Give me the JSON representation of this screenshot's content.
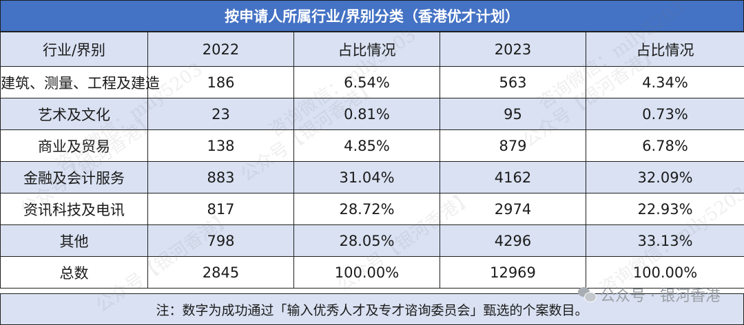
{
  "title": "按申请人所属行业/界别分类（香港优才计划）",
  "table": {
    "headers": [
      "行业/界别",
      "2022",
      "占比情况",
      "2023",
      "占比情况"
    ],
    "rows": [
      {
        "industry": "建筑、测量、工程及建造",
        "n2022": "186",
        "p2022": "6.54%",
        "n2023": "563",
        "p2023": "4.34%"
      },
      {
        "industry": "艺术及文化",
        "n2022": "23",
        "p2022": "0.81%",
        "n2023": "95",
        "p2023": "0.73%"
      },
      {
        "industry": "商业及贸易",
        "n2022": "138",
        "p2022": "4.85%",
        "n2023": "879",
        "p2023": "6.78%"
      },
      {
        "industry": "金融及会计服务",
        "n2022": "883",
        "p2022": "31.04%",
        "n2023": "4162",
        "p2023": "32.09%"
      },
      {
        "industry": "资讯科技及电讯",
        "n2022": "817",
        "p2022": "28.72%",
        "n2023": "2974",
        "p2023": "22.93%"
      },
      {
        "industry": "其他",
        "n2022": "798",
        "p2022": "28.05%",
        "n2023": "4296",
        "p2023": "33.13%"
      },
      {
        "industry": "总数",
        "n2022": "2845",
        "p2022": "100.00%",
        "n2023": "12969",
        "p2023": "100.00%"
      }
    ]
  },
  "note": "注：数字为成功通过「输入优秀人才及专才谘询委员会」甄选的个案数目。",
  "watermark": {
    "account": "公众号【银河香港】",
    "contact": "咨询微信：mily5203",
    "badge": "公众号 · 银河香港"
  },
  "colors": {
    "title_bg": "#4472c4",
    "shade_row": "#d9e1f2",
    "border": "#1f1f1f"
  }
}
